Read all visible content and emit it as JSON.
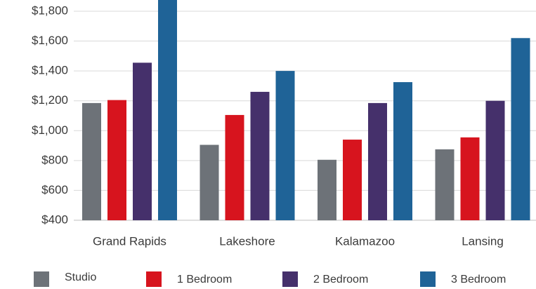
{
  "chart_data": {
    "type": "bar",
    "categories": [
      "Grand Rapids",
      "Lakeshore",
      "Kalamazoo",
      "Lansing"
    ],
    "series": [
      {
        "name": "Studio",
        "color": "#6d7278",
        "values": [
          1185,
          905,
          805,
          875
        ]
      },
      {
        "name": "1 Bedroom",
        "color": "#d7141e",
        "values": [
          1205,
          1105,
          940,
          955
        ]
      },
      {
        "name": "2 Bedroom",
        "color": "#45306b",
        "values": [
          1455,
          1260,
          1185,
          1200
        ]
      },
      {
        "name": "3 Bedroom",
        "color": "#1f6397",
        "values": [
          1875,
          1400,
          1325,
          1620
        ]
      }
    ],
    "ylim": [
      400,
      1875
    ],
    "yticks": [
      {
        "value": 400,
        "label": "$400"
      },
      {
        "value": 600,
        "label": "$600"
      },
      {
        "value": 800,
        "label": "$800"
      },
      {
        "value": 1000,
        "label": "$1,000"
      },
      {
        "value": 1200,
        "label": "$1,200"
      },
      {
        "value": 1400,
        "label": "$1,400"
      },
      {
        "value": 1600,
        "label": "$1,600"
      },
      {
        "value": 1800,
        "label": "$1,800"
      }
    ],
    "grid": true,
    "legend": "bottom"
  }
}
